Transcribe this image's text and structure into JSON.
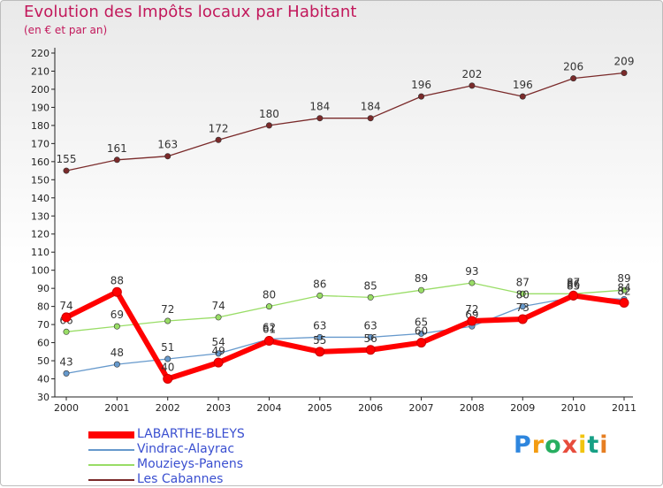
{
  "chart_data": {
    "type": "line",
    "title": "Evolution des Impôts locaux par Habitant",
    "subtitle": "(en € et par an)",
    "categories": [
      "2000",
      "2001",
      "2002",
      "2003",
      "2004",
      "2005",
      "2006",
      "2007",
      "2008",
      "2009",
      "2010",
      "2011"
    ],
    "ylim": [
      30,
      220
    ],
    "ytick_step": 10,
    "grid": false,
    "legend_position": "bottom-left",
    "series": [
      {
        "name": "LABARTHE-BLEYS",
        "color": "#ff0000",
        "values": [
          74,
          88,
          40,
          49,
          61,
          55,
          56,
          60,
          72,
          73,
          86,
          82
        ]
      },
      {
        "name": "Vindrac-Alayrac",
        "color": "#6699cc",
        "values": [
          43,
          48,
          51,
          54,
          62,
          63,
          63,
          65,
          69,
          80,
          85,
          84
        ]
      },
      {
        "name": "Mouzieys-Panens",
        "color": "#99dd66",
        "values": [
          66,
          69,
          72,
          74,
          80,
          86,
          85,
          89,
          93,
          87,
          87,
          89
        ]
      },
      {
        "name": "Les Cabannes",
        "color": "#7a2a2a",
        "values": [
          155,
          161,
          163,
          172,
          180,
          184,
          184,
          196,
          202,
          196,
          206,
          209
        ]
      }
    ]
  },
  "logo": {
    "letters": [
      "P",
      "r",
      "o",
      "x",
      "i",
      "t",
      "i"
    ],
    "colors": [
      "#2e86de",
      "#f39c12",
      "#27ae60",
      "#e74c3c",
      "#f1c40f",
      "#16a085",
      "#e67e22"
    ]
  }
}
